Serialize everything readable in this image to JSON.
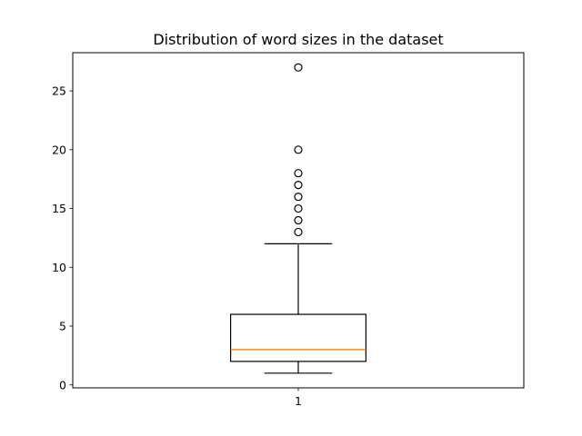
{
  "chart_data": {
    "type": "box",
    "title": "Distribution of word sizes in the dataset",
    "xlabel": "",
    "ylabel": "",
    "categories": [
      "1"
    ],
    "boxes": [
      {
        "label": "1",
        "whisker_low": 1,
        "q1": 2,
        "median": 3,
        "q3": 6,
        "whisker_high": 12,
        "outliers": [
          13,
          14,
          15,
          16,
          17,
          18,
          20,
          27
        ]
      }
    ],
    "yticks": [
      0,
      5,
      10,
      15,
      20,
      25
    ],
    "ylim": [
      -0.25,
      28.25
    ],
    "xlim": [
      0.5,
      1.5
    ],
    "grid": false,
    "colors": {
      "box": "#000000",
      "median": "#ff7f0e",
      "outlier": "#000000"
    }
  }
}
